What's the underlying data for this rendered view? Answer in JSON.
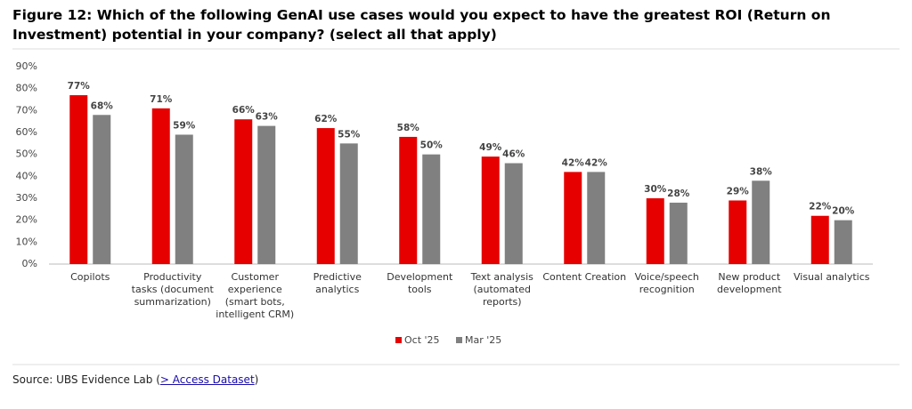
{
  "chart_data": {
    "type": "bar",
    "title": "Figure 12: Which of the following GenAI use cases would you expect to have the greatest ROI (Return on Investment) potential in your company? (select all that apply)",
    "categories": [
      "Copilots",
      "Productivity tasks (document summarization)",
      "Customer experience (smart bots, intelligent CRM)",
      "Predictive analytics",
      "Development tools",
      "Text analysis (automated reports)",
      "Content Creation",
      "Voice/speech recognition",
      "New product development",
      "Visual analytics"
    ],
    "series": [
      {
        "name": "Oct '25",
        "color": "#e60000",
        "values": [
          77,
          71,
          66,
          62,
          58,
          49,
          42,
          30,
          29,
          22
        ],
        "value_labels": [
          "77%",
          "71%",
          "66%",
          "62%",
          "58%",
          "49%",
          "42%",
          "30%",
          "29%",
          "22%"
        ]
      },
      {
        "name": "Mar '25",
        "color": "#808080",
        "values": [
          68,
          59,
          63,
          55,
          50,
          46,
          42,
          28,
          38,
          20
        ],
        "value_labels": [
          "68%",
          "59%",
          "63%",
          "55%",
          "50%",
          "46%",
          "42%",
          "28%",
          "38%",
          "20%"
        ]
      }
    ],
    "ylim": [
      0,
      90
    ],
    "yticks": [
      {
        "value": 0,
        "label": "0%"
      },
      {
        "value": 10,
        "label": "10%"
      },
      {
        "value": 20,
        "label": "20%"
      },
      {
        "value": 30,
        "label": "30%"
      },
      {
        "value": 40,
        "label": "40%"
      },
      {
        "value": 50,
        "label": "50%"
      },
      {
        "value": 60,
        "label": "60%"
      },
      {
        "value": 70,
        "label": "70%"
      },
      {
        "value": 80,
        "label": "80%"
      },
      {
        "value": 90,
        "label": "90%"
      }
    ],
    "grid": false,
    "legend": "bottom",
    "source": {
      "prefix": "Source: UBS Evidence Lab (",
      "link": "> Access Dataset",
      "suffix": ")"
    }
  }
}
